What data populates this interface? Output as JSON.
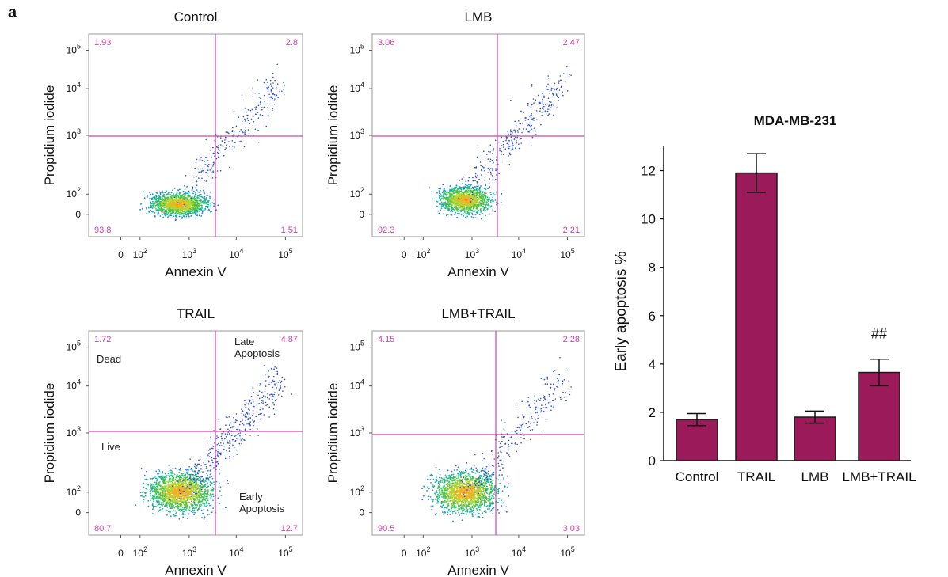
{
  "panel_label": "a",
  "flow_panels": [
    {
      "title": "Control",
      "xlabel": "Annexin V",
      "ylabel": "Propidium iodide",
      "quadrants": {
        "upper_left": "1.93",
        "upper_right": "2.8",
        "lower_left": "93.8",
        "lower_right": "1.51"
      },
      "annotations": []
    },
    {
      "title": "LMB",
      "xlabel": "Annexin V",
      "ylabel": "Propidium iodide",
      "quadrants": {
        "upper_left": "3.06",
        "upper_right": "2.47",
        "lower_left": "92.3",
        "lower_right": "2.21"
      },
      "annotations": []
    },
    {
      "title": "TRAIL",
      "xlabel": "Annexin V",
      "ylabel": "Propidium iodide",
      "quadrants": {
        "upper_left": "1.72",
        "upper_right": "4.87",
        "lower_left": "80.7",
        "lower_right": "12.7"
      },
      "annotations": [
        {
          "label": "Dead",
          "quadrant": "upper_left"
        },
        {
          "label": "Late\nApoptosis",
          "quadrant": "upper_right"
        },
        {
          "label": "Live",
          "quadrant": "lower_left"
        },
        {
          "label": "Early\nApoptosis",
          "quadrant": "lower_right"
        }
      ]
    },
    {
      "title": "LMB+TRAIL",
      "xlabel": "Annexin V",
      "ylabel": "Propidium iodide",
      "quadrants": {
        "upper_left": "4.15",
        "upper_right": "2.28",
        "lower_left": "90.5",
        "lower_right": "3.03"
      },
      "annotations": []
    }
  ],
  "flow_axis": {
    "x_ticks": [
      {
        "base": "0",
        "exp": ""
      },
      {
        "base": "10",
        "exp": "2"
      },
      {
        "base": "10",
        "exp": "3"
      },
      {
        "base": "10",
        "exp": "4"
      },
      {
        "base": "10",
        "exp": "5"
      }
    ],
    "y_ticks": [
      {
        "base": "0",
        "exp": ""
      },
      {
        "base": "10",
        "exp": "2"
      },
      {
        "base": "10",
        "exp": "3"
      },
      {
        "base": "10",
        "exp": "4"
      },
      {
        "base": "10",
        "exp": "5"
      }
    ]
  },
  "chart_data": {
    "type": "bar",
    "title": "MDA-MB-231",
    "xlabel": "",
    "ylabel": "Early apoptosis %",
    "categories": [
      "Control",
      "TRAIL",
      "LMB",
      "LMB+TRAIL"
    ],
    "values": [
      1.7,
      11.9,
      1.8,
      3.65
    ],
    "errors": [
      0.25,
      0.8,
      0.25,
      0.55
    ],
    "annotations": [
      {
        "category": "LMB+TRAIL",
        "text": "##"
      }
    ],
    "ylim": [
      0,
      13
    ],
    "yticks": [
      0,
      2,
      4,
      6,
      8,
      10,
      12
    ],
    "grid": false,
    "colors": {
      "bar": "#9b1b5a",
      "bar_edge": "#1a1a1a"
    }
  },
  "colors": {
    "gate": "#cc44aa",
    "quadrant_text": "#cc44aa",
    "axis": "#333333",
    "text": "#111111"
  }
}
